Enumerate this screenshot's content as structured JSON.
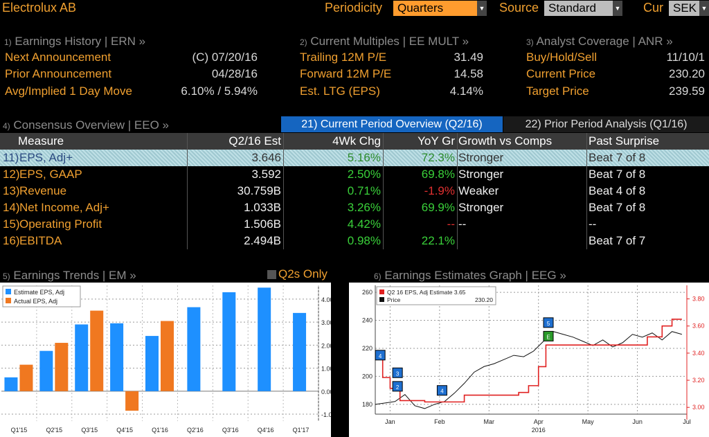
{
  "header": {
    "security": "Electrolux AB",
    "periodicity_label": "Periodicity",
    "periodicity_value": "Quarters",
    "source_label": "Source",
    "source_value": "Standard",
    "cur_label": "Cur",
    "cur_value": "SEK"
  },
  "earnings_history": {
    "num": "1)",
    "title": "Earnings History | ERN »",
    "rows": [
      {
        "label": "Next Announcement",
        "value": "(C)  07/20/16"
      },
      {
        "label": "Prior Announcement",
        "value": "04/28/16"
      },
      {
        "label": "Avg/Implied 1 Day Move",
        "value": "6.10% / 5.94%"
      }
    ]
  },
  "current_multiples": {
    "num": "2)",
    "title": "Current Multiples | EE MULT »",
    "rows": [
      {
        "label": "Trailing 12M P/E",
        "value": "31.49"
      },
      {
        "label": "Forward 12M P/E",
        "value": "14.58"
      },
      {
        "label": "Est. LTG (EPS)",
        "value": "4.14%"
      }
    ]
  },
  "analyst_coverage": {
    "num": "3)",
    "title": "Analyst Coverage | ANR »",
    "rows": [
      {
        "label": "Buy/Hold/Sell",
        "value": "11/10/1"
      },
      {
        "label": "Current Price",
        "value": "230.20"
      },
      {
        "label": "Target Price",
        "value": "239.59"
      }
    ]
  },
  "consensus": {
    "num": "4)",
    "title": "Consensus Overview | EEO »",
    "tab_current": "21) Current Period Overview (Q2/16)",
    "tab_prior": "22) Prior Period Analysis (Q1/16)",
    "columns": [
      "Measure",
      "Q2/16 Est",
      "4Wk Chg",
      "YoY Gr",
      "Growth vs Comps",
      "Past Surprise"
    ],
    "rows": [
      {
        "num": "11)",
        "measure": "EPS, Adj+",
        "est": "3.646",
        "chg": "5.16%",
        "yoy": "72.3%",
        "growth": "Stronger",
        "surprise": "Beat 7 of 8"
      },
      {
        "num": "12)",
        "measure": "EPS, GAAP",
        "est": "3.592",
        "chg": "2.50%",
        "yoy": "69.8%",
        "growth": "Stronger",
        "surprise": "Beat 7 of 8"
      },
      {
        "num": "13)",
        "measure": "Revenue",
        "est": "30.759B",
        "chg": "0.71%",
        "yoy": "-1.9%",
        "growth": "Weaker",
        "surprise": "Beat 4 of 8"
      },
      {
        "num": "14)",
        "measure": "Net Income, Adj+",
        "est": "1.033B",
        "chg": "3.26%",
        "yoy": "69.9%",
        "growth": "Stronger",
        "surprise": "Beat 7 of 8"
      },
      {
        "num": "15)",
        "measure": "Operating Profit",
        "est": "1.506B",
        "chg": "4.42%",
        "yoy": "--",
        "growth": "--",
        "surprise": "--"
      },
      {
        "num": "16)",
        "measure": "EBITDA",
        "est": "2.494B",
        "chg": "0.98%",
        "yoy": "22.1%",
        "growth": "",
        "surprise": "Beat 7 of 7"
      }
    ]
  },
  "earnings_trends": {
    "num": "5)",
    "title": "Earnings Trends | EM »",
    "q2s_only": "Q2s Only"
  },
  "earnings_graph": {
    "num": "6)",
    "title": "Earnings Estimates Graph | EEG »"
  },
  "colors": {
    "amber": "#f0a030",
    "estimate_blue": "#1e90ff",
    "actual_orange": "#f07820",
    "price_red": "#e02020",
    "green": "#3ad13a"
  },
  "chart_data": [
    {
      "type": "bar",
      "categories": [
        "Q1'15",
        "Q2'15",
        "Q3'15",
        "Q4'15",
        "Q1'16",
        "Q2'16",
        "Q3'16",
        "Q4'16",
        "Q1'17"
      ],
      "series": [
        {
          "name": "Estimate EPS, Adj",
          "values": [
            0.6,
            1.75,
            2.9,
            2.95,
            2.4,
            3.65,
            4.3,
            4.5,
            3.4
          ]
        },
        {
          "name": "Actual EPS, Adj",
          "values": [
            1.15,
            2.1,
            3.5,
            -0.85,
            3.05,
            null,
            null,
            null,
            null
          ]
        }
      ],
      "ylim": [
        -1.3,
        4.6
      ],
      "yticks": [
        "-1.00",
        "0.00",
        "1.00",
        "2.00",
        "3.00",
        "4.00"
      ],
      "ytick_values": [
        -1,
        0,
        1,
        2,
        3,
        4
      ],
      "legend": "top-left"
    },
    {
      "type": "line",
      "x_labels": [
        "Jan",
        "Feb",
        "Mar",
        "Apr",
        "May",
        "Jun",
        "Jul"
      ],
      "x_sublabel": "2016",
      "left_yticks": [
        "180",
        "200",
        "220",
        "240",
        "260"
      ],
      "left_ytick_values": [
        180,
        200,
        220,
        240,
        260
      ],
      "right_yticks": [
        "3.00",
        "3.20",
        "3.40",
        "3.60",
        "3.80"
      ],
      "right_ytick_values": [
        3.0,
        3.2,
        3.4,
        3.6,
        3.8
      ],
      "legend_entries": [
        {
          "name": "Q2 16 EPS, Adj Estimate",
          "value": "3.65"
        },
        {
          "name": "Price",
          "value": "230.20"
        }
      ],
      "series": [
        {
          "name": "Price",
          "axis": "left",
          "x": [
            0,
            0.2,
            0.4,
            0.6,
            0.8,
            1.0,
            1.2,
            1.4,
            1.6,
            1.8,
            2.0,
            2.2,
            2.4,
            2.6,
            2.8,
            3.0,
            3.2,
            3.4,
            3.6,
            3.8,
            4.0,
            4.2,
            4.4,
            4.6,
            4.8,
            5.0,
            5.2,
            5.4,
            5.6,
            5.8,
            6.0,
            6.2
          ],
          "values": [
            180,
            181,
            182,
            187,
            179,
            177,
            180,
            182,
            188,
            195,
            203,
            207,
            209,
            212,
            215,
            214,
            218,
            225,
            232,
            230,
            228,
            225,
            222,
            226,
            221,
            224,
            230,
            228,
            231,
            226,
            232,
            230
          ]
        },
        {
          "name": "Q2 16 EPS, Adj Estimate",
          "axis": "right",
          "x": [
            0,
            0.15,
            0.3,
            0.5,
            1.0,
            1.2,
            1.5,
            1.8,
            2.2,
            2.6,
            2.9,
            3.1,
            3.3,
            3.45,
            3.55,
            4.0,
            4.5,
            5.0,
            5.5,
            5.8,
            6.0,
            6.2
          ],
          "values": [
            3.38,
            3.22,
            3.14,
            3.05,
            3.04,
            3.04,
            3.04,
            3.09,
            3.09,
            3.09,
            3.11,
            3.16,
            3.3,
            3.46,
            3.46,
            3.46,
            3.46,
            3.46,
            3.52,
            3.6,
            3.65,
            3.65
          ]
        }
      ]
    }
  ]
}
